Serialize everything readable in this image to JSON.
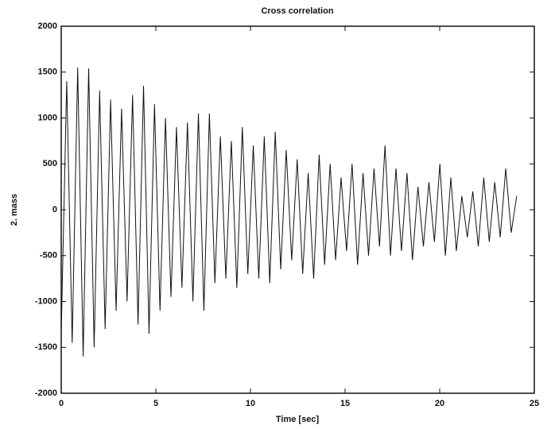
{
  "chart_data": {
    "type": "line",
    "title": "Cross correlation",
    "x_label": "Time [sec]",
    "y_label": "2. mass",
    "color": "#111111",
    "x": [
      0,
      0.29,
      0.58,
      0.87,
      1.16,
      1.45,
      1.74,
      2.03,
      2.32,
      2.61,
      2.9,
      3.19,
      3.48,
      3.77,
      4.06,
      4.35,
      4.64,
      4.93,
      5.22,
      5.51,
      5.8,
      6.09,
      6.38,
      6.67,
      6.96,
      7.25,
      7.54,
      7.83,
      8.12,
      8.41,
      8.7,
      8.99,
      9.28,
      9.57,
      9.86,
      10.15,
      10.44,
      10.73,
      11.02,
      11.31,
      11.6,
      11.89,
      12.18,
      12.47,
      12.76,
      13.05,
      13.34,
      13.63,
      13.92,
      14.21,
      14.5,
      14.79,
      15.08,
      15.37,
      15.66,
      15.95,
      16.24,
      16.53,
      16.82,
      17.11,
      17.4,
      17.69,
      17.98,
      18.27,
      18.56,
      18.85,
      19.14,
      19.43,
      19.72,
      20.01,
      20.3,
      20.59,
      20.88,
      21.17,
      21.46,
      21.75,
      22.04,
      22.33,
      22.62,
      22.91,
      23.2,
      23.49,
      23.78,
      24.07
    ],
    "values": [
      -1350,
      1400,
      -1450,
      1550,
      -1600,
      1540,
      -1500,
      1300,
      -1300,
      1200,
      -1100,
      1100,
      -1000,
      1250,
      -1250,
      1350,
      -1350,
      1150,
      -1100,
      1000,
      -950,
      900,
      -850,
      950,
      -1000,
      1050,
      -1100,
      1050,
      -800,
      800,
      -750,
      750,
      -850,
      900,
      -700,
      700,
      -750,
      800,
      -800,
      850,
      -650,
      650,
      -550,
      550,
      -700,
      400,
      -750,
      600,
      -600,
      500,
      -550,
      350,
      -450,
      500,
      -600,
      400,
      -500,
      450,
      -400,
      700,
      -500,
      450,
      -450,
      400,
      -550,
      250,
      -400,
      300,
      -350,
      500,
      -500,
      350,
      -450,
      150,
      -300,
      200,
      -400,
      350,
      -350,
      300,
      -300,
      450,
      -250,
      150
    ],
    "xlim": [
      0,
      25
    ],
    "xticks": [
      0,
      5,
      10,
      15,
      20,
      25
    ],
    "ylim": [
      -2000,
      2000
    ],
    "yticks": [
      -2000,
      -1500,
      -1000,
      -500,
      0,
      500,
      1000,
      1500,
      2000
    ]
  }
}
